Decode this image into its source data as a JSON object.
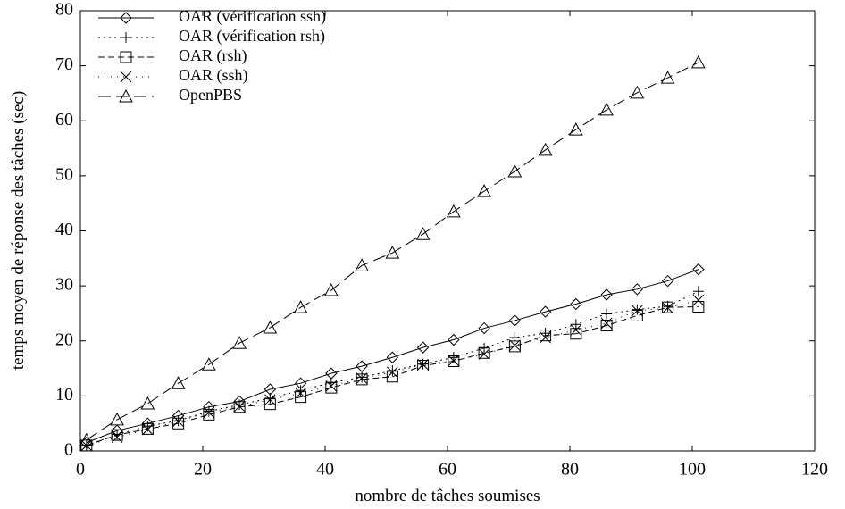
{
  "chart_data": {
    "type": "line",
    "xlabel": "nombre de tâches soumises",
    "ylabel": "temps moyen de réponse des tâches (sec)",
    "x": [
      1,
      6,
      11,
      16,
      21,
      26,
      31,
      36,
      41,
      46,
      51,
      56,
      61,
      66,
      71,
      76,
      81,
      86,
      91,
      96,
      101
    ],
    "series": [
      {
        "name": "OAR (vérification ssh)",
        "color": "#000000",
        "dash": "solid",
        "marker": "diamond",
        "values": [
          1.5,
          3.7,
          5,
          6.4,
          8,
          9,
          11.2,
          12.3,
          14.1,
          15.4,
          17,
          18.8,
          20.2,
          22.3,
          23.7,
          25.3,
          26.7,
          28.4,
          29.4,
          30.9,
          33
        ]
      },
      {
        "name": "OAR (vérification rsh)",
        "color": "#000000",
        "dash": "dotted",
        "marker": "plus",
        "values": [
          1,
          3,
          4.5,
          5.5,
          7.2,
          8.4,
          9.6,
          11,
          12.4,
          13.4,
          14.6,
          15.8,
          17,
          18.7,
          20.6,
          21.4,
          23,
          24.9,
          25.7,
          26.3,
          29
        ]
      },
      {
        "name": "OAR (rsh)",
        "color": "#000000",
        "dash": "dashed",
        "marker": "square",
        "values": [
          1,
          2.9,
          4,
          5,
          6.6,
          8,
          8.5,
          9.8,
          11.5,
          13,
          13.5,
          15.5,
          16.3,
          17.8,
          19,
          21,
          21.3,
          22.8,
          24.6,
          26.1,
          26.2
        ]
      },
      {
        "name": "OAR (ssh)",
        "color": "#000000",
        "dash": "sparse-dotted",
        "marker": "x",
        "values": [
          1,
          2.5,
          3.9,
          5.4,
          7,
          8.1,
          9.3,
          10.5,
          11.8,
          13.2,
          14.3,
          15.7,
          16.4,
          17.6,
          19.2,
          20.6,
          22,
          23.2,
          25.5,
          26,
          27.4
        ]
      },
      {
        "name": "OpenPBS",
        "color": "#000000",
        "dash": "long-dashed",
        "marker": "triangle",
        "values": [
          2,
          5.7,
          8.6,
          12.3,
          15.7,
          19.6,
          22.4,
          26.1,
          29.2,
          33.7,
          36,
          39.4,
          43.5,
          47.2,
          50.8,
          54.7,
          58.4,
          62,
          65.1,
          67.8,
          70.6
        ]
      }
    ],
    "xlim": [
      0,
      120
    ],
    "xticks": [
      0,
      20,
      40,
      60,
      80,
      100,
      120
    ],
    "ylim": [
      0,
      80
    ],
    "yticks": [
      0,
      10,
      20,
      30,
      40,
      50,
      60,
      70,
      80
    ],
    "grid": false,
    "legend": "upper left"
  }
}
